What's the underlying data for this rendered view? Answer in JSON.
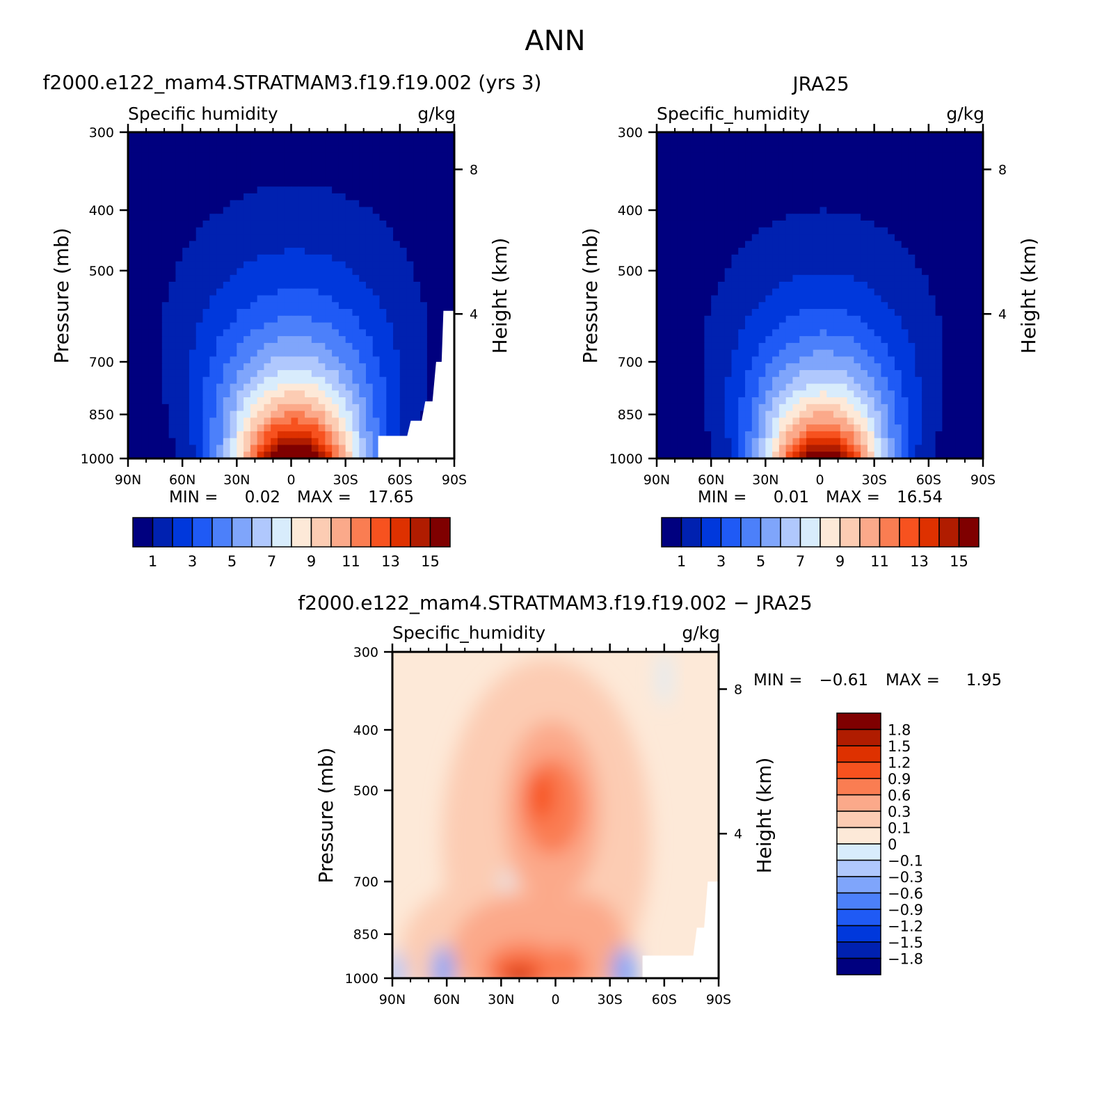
{
  "figure": {
    "season": "ANN"
  },
  "colors": {
    "sh_levels": [
      "#00007f",
      "#0021b0",
      "#0038dc",
      "#1f5af5",
      "#4c80fa",
      "#7fa5fb",
      "#b0c8fd",
      "#d8ecfc",
      "#fde9d8",
      "#fcccb3",
      "#fba98a",
      "#fa7d52",
      "#f7521f",
      "#de3100",
      "#b01c00",
      "#7f0000"
    ],
    "diff_levels": [
      "#00007f",
      "#0021b0",
      "#0038dc",
      "#1f5af5",
      "#4c80fa",
      "#7fa5fb",
      "#b0c8fd",
      "#d8ecfc",
      "#fde9d8",
      "#fcccb3",
      "#fba98a",
      "#fa7d52",
      "#f7521f",
      "#de3100",
      "#b01c00",
      "#7f0000"
    ],
    "missing": "#ffffff"
  },
  "chart_data": [
    {
      "type": "heatmap",
      "title": "f2000.e122_mam4.STRATMAM3.f19.f19.002 (yrs 3)",
      "left_label": "Specific humidity",
      "right_label": "g/kg",
      "ylabel": "Pressure (mb)",
      "y2label": "Height (km)",
      "x_ticks": [
        "90N",
        "60N",
        "30N",
        "0",
        "30S",
        "60S",
        "90S"
      ],
      "y_ticks": [
        "300",
        "400",
        "500",
        "700",
        "850",
        "1000"
      ],
      "y2_ticks": [
        "8",
        "4"
      ],
      "stats": {
        "min_label": "MIN =",
        "min": "0.02",
        "max_label": "MAX =",
        "max": "17.65"
      },
      "colorbar_labels": [
        "1",
        "3",
        "5",
        "7",
        "9",
        "11",
        "13",
        "15"
      ],
      "ylim": [
        1000,
        300
      ],
      "xlim": [
        90,
        -90
      ],
      "field": {
        "peak_lat": -2,
        "peak_value": 17.65,
        "scale_height_km": 2.6,
        "lat_width": 36
      }
    },
    {
      "type": "heatmap",
      "title": "JRA25",
      "left_label": "Specific_humidity",
      "right_label": "g/kg",
      "ylabel": "Pressure (mb)",
      "y2label": "Height (km)",
      "x_ticks": [
        "90N",
        "60N",
        "30N",
        "0",
        "30S",
        "60S",
        "90S"
      ],
      "y_ticks": [
        "300",
        "400",
        "500",
        "700",
        "850",
        "1000"
      ],
      "y2_ticks": [
        "8",
        "4"
      ],
      "stats": {
        "min_label": "MIN =",
        "min": "0.01",
        "max_label": "MAX =",
        "max": "16.54"
      },
      "colorbar_labels": [
        "1",
        "3",
        "5",
        "7",
        "9",
        "11",
        "13",
        "15"
      ],
      "ylim": [
        1000,
        300
      ],
      "xlim": [
        90,
        -90
      ],
      "field": {
        "peak_lat": -2,
        "peak_value": 16.54,
        "scale_height_km": 2.4,
        "lat_width": 34
      }
    },
    {
      "type": "heatmap",
      "title": "f2000.e122_mam4.STRATMAM3.f19.f19.002 − JRA25",
      "left_label": "Specific_humidity",
      "right_label": "g/kg",
      "ylabel": "Pressure (mb)",
      "y2label": "Height (km)",
      "x_ticks": [
        "90N",
        "60N",
        "30N",
        "0",
        "30S",
        "60S",
        "90S"
      ],
      "y_ticks": [
        "300",
        "400",
        "500",
        "700",
        "850",
        "1000"
      ],
      "y2_ticks": [
        "8",
        "4"
      ],
      "stats": {
        "min_label": "MIN =",
        "min": "−0.61",
        "max_label": "MAX =",
        "max": "1.95"
      },
      "colorbar_labels": [
        "1.8",
        "1.5",
        "1.2",
        "0.9",
        "0.6",
        "0.3",
        "0.1",
        "0",
        "−0.1",
        "−0.3",
        "−0.6",
        "−0.9",
        "−1.2",
        "−1.5",
        "−1.8"
      ],
      "ylim": [
        1000,
        300
      ],
      "xlim": [
        90,
        -90
      ]
    }
  ]
}
